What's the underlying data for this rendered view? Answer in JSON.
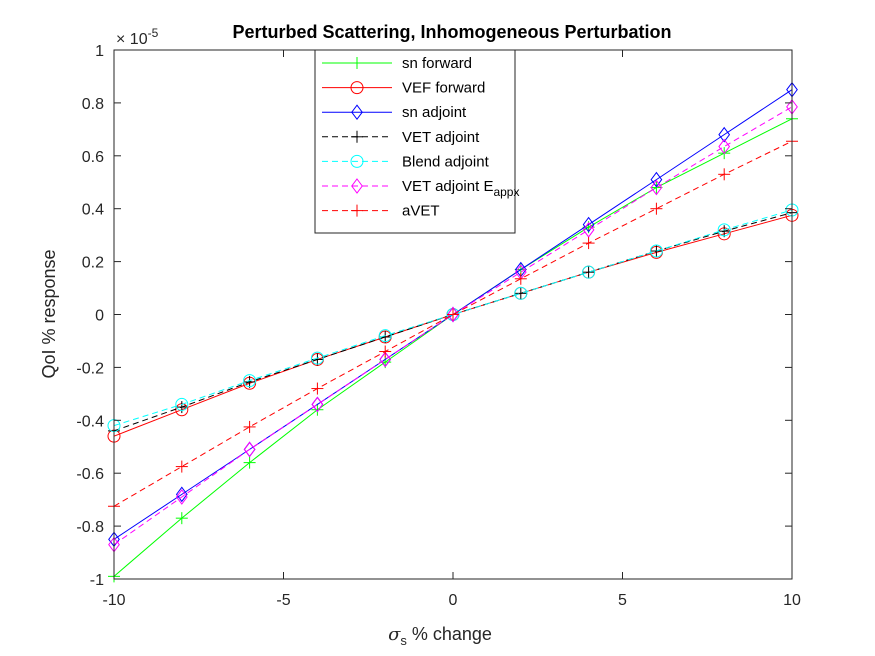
{
  "chart_data": {
    "type": "line",
    "title": "Perturbed Scattering, Inhomogeneous Perturbation",
    "xlabel": {
      "symbol": "σ",
      "subscript": "s",
      "text": " % change"
    },
    "ylabel": "QoI % response",
    "y_exponent": {
      "base": "× 10",
      "power": "-5"
    },
    "xlim": [
      -10,
      10
    ],
    "ylim": [
      -1,
      1
    ],
    "x_ticks": [
      "-10",
      "-5",
      "0",
      "5",
      "10"
    ],
    "y_ticks": [
      "-1",
      "-0.8",
      "-0.6",
      "-0.4",
      "-0.2",
      "0",
      "0.2",
      "0.4",
      "0.6",
      "0.8",
      "1"
    ],
    "grid": false,
    "legend_position": "top-center",
    "x": [
      -10,
      -8,
      -6,
      -4,
      -2,
      0,
      2,
      4,
      6,
      8,
      10
    ],
    "series": [
      {
        "name": "sn forward",
        "legend_main": "sn forward",
        "legend_sub": "",
        "color": "#00ff00",
        "dashed": false,
        "marker": "plus",
        "values": [
          -0.99,
          -0.77,
          -0.56,
          -0.36,
          -0.18,
          0,
          0.17,
          0.33,
          0.48,
          0.61,
          0.74
        ]
      },
      {
        "name": "VEF forward",
        "legend_main": "VEF forward",
        "legend_sub": "",
        "color": "#ff0000",
        "dashed": false,
        "marker": "circle",
        "values": [
          -0.46,
          -0.36,
          -0.26,
          -0.17,
          -0.085,
          0,
          0.08,
          0.16,
          0.235,
          0.305,
          0.375
        ]
      },
      {
        "name": "sn adjoint",
        "legend_main": "sn adjoint",
        "legend_sub": "",
        "color": "#0000ff",
        "dashed": false,
        "marker": "diamond",
        "values": [
          -0.85,
          -0.68,
          -0.51,
          -0.34,
          -0.17,
          0,
          0.17,
          0.34,
          0.51,
          0.68,
          0.85
        ]
      },
      {
        "name": "VET adjoint",
        "legend_main": "VET adjoint",
        "legend_sub": "",
        "color": "#000000",
        "dashed": true,
        "marker": "plus",
        "values": [
          -0.44,
          -0.35,
          -0.255,
          -0.17,
          -0.085,
          0,
          0.08,
          0.16,
          0.24,
          0.315,
          0.385
        ]
      },
      {
        "name": "Blend adjoint",
        "legend_main": "Blend adjoint",
        "legend_sub": "",
        "color": "#00ffff",
        "dashed": true,
        "marker": "circle",
        "values": [
          -0.42,
          -0.34,
          -0.25,
          -0.165,
          -0.08,
          0,
          0.08,
          0.16,
          0.24,
          0.32,
          0.395
        ]
      },
      {
        "name": "VET adjoint E_appx",
        "legend_main": "VET adjoint E",
        "legend_sub": "appx",
        "color": "#ff00ff",
        "dashed": true,
        "marker": "diamond",
        "values": [
          -0.87,
          -0.69,
          -0.51,
          -0.34,
          -0.17,
          0,
          0.16,
          0.32,
          0.48,
          0.635,
          0.785
        ]
      },
      {
        "name": "aVET",
        "legend_main": "aVET",
        "legend_sub": "",
        "color": "#ff0000",
        "dashed": true,
        "marker": "plus",
        "values": [
          -0.725,
          -0.575,
          -0.425,
          -0.28,
          -0.14,
          0,
          0.135,
          0.27,
          0.4,
          0.53,
          0.655
        ]
      }
    ]
  }
}
